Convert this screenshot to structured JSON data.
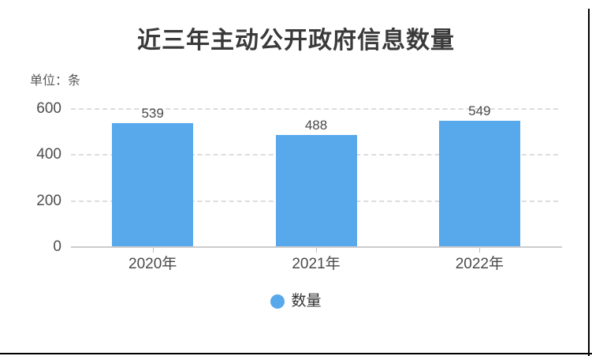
{
  "chart_data": {
    "type": "bar",
    "title": "近三年主动公开政府信息数量",
    "unit_label": "单位：条",
    "categories": [
      "2020年",
      "2021年",
      "2022年"
    ],
    "series": [
      {
        "name": "数量",
        "color": "#58A8EC",
        "values": [
          539,
          488,
          549
        ]
      }
    ],
    "data_labels": [
      "539",
      "488",
      "549"
    ],
    "xlabel": "",
    "ylabel": "",
    "ylim": [
      0,
      600
    ],
    "yticks": [
      0,
      200,
      400,
      600
    ],
    "grid": true,
    "gridline_style": "dashed",
    "legend_position": "bottom",
    "colors": {
      "bar": "#58A8EC",
      "title_text": "#3A3A3A",
      "unit_text": "#595959",
      "axis_label_text": "#4A4A4A",
      "axis_line": "#CCCCCC",
      "gridline": "#DDDDDD",
      "frame_border": "#000000"
    }
  }
}
